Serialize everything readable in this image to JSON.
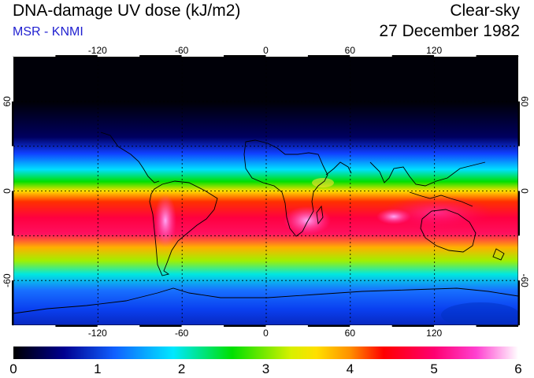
{
  "title": "DNA-damage UV dose (kJ/m2)",
  "source": "MSR - KNMI",
  "condition": "Clear-sky",
  "date": "27 December 1982",
  "map": {
    "lon_range": [
      -180,
      180
    ],
    "lat_range": [
      -90,
      90
    ],
    "lon_ticks": [
      -120,
      -60,
      0,
      60,
      120
    ],
    "lat_ticks": [
      60,
      0,
      -60
    ],
    "gridlines": true,
    "colors": {
      "ocean_dark": "#000010",
      "coastline": "#000000",
      "grid": "#000000"
    }
  },
  "colorbar": {
    "min": 0,
    "max": 6,
    "tick_values": [
      0,
      1,
      2,
      3,
      4,
      5,
      6
    ],
    "tick_labels": [
      "0",
      "1",
      "2",
      "3",
      "4",
      "5",
      "6"
    ],
    "stops": [
      {
        "value": 0.0,
        "color": "#000000"
      },
      {
        "value": 0.6,
        "color": "#000090"
      },
      {
        "value": 1.2,
        "color": "#1060ff"
      },
      {
        "value": 1.9,
        "color": "#00e8ff"
      },
      {
        "value": 2.6,
        "color": "#00e000"
      },
      {
        "value": 3.3,
        "color": "#d8f000"
      },
      {
        "value": 3.6,
        "color": "#ffe000"
      },
      {
        "value": 4.0,
        "color": "#ff9000"
      },
      {
        "value": 4.4,
        "color": "#ff0000"
      },
      {
        "value": 5.0,
        "color": "#ff0070"
      },
      {
        "value": 5.5,
        "color": "#ff40d0"
      },
      {
        "value": 6.0,
        "color": "#ffffff"
      }
    ]
  }
}
